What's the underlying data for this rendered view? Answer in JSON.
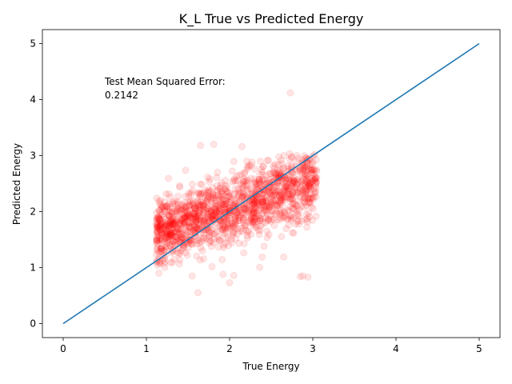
{
  "chart_data": {
    "type": "scatter",
    "title": "K_L True vs Predicted Energy",
    "xlabel": "True Energy",
    "ylabel": "Predicted Energy",
    "xlim": [
      -0.25,
      5.25
    ],
    "ylim": [
      -0.25,
      5.25
    ],
    "xticks": [
      "0",
      "1",
      "2",
      "3",
      "4",
      "5"
    ],
    "yticks": [
      "0",
      "1",
      "2",
      "3",
      "4",
      "5"
    ],
    "grid": false,
    "legend": "none",
    "annotation": {
      "line1": "Test Mean Squared Error:",
      "line2": "0.2142",
      "x": 0.5,
      "y": 4.02
    },
    "reference_line": {
      "x": [
        0,
        5
      ],
      "y": [
        0,
        5
      ],
      "color": "#1f77b4"
    },
    "scatter_color": "#ff0000",
    "scatter_alpha": 0.1,
    "scatter_count": 1500,
    "scatter_x_range": [
      1.12,
      3.05
    ],
    "scatter_trend": {
      "y_at_x_min": 1.6,
      "y_at_x_max": 2.55,
      "spread_sd": 0.3
    },
    "outliers": [
      {
        "x": 2.73,
        "y": 4.12
      },
      {
        "x": 1.62,
        "y": 0.55
      },
      {
        "x": 2.0,
        "y": 0.73
      },
      {
        "x": 1.15,
        "y": 0.9
      },
      {
        "x": 1.55,
        "y": 0.85
      },
      {
        "x": 1.92,
        "y": 0.88
      },
      {
        "x": 2.05,
        "y": 0.86
      },
      {
        "x": 2.85,
        "y": 0.84
      },
      {
        "x": 2.94,
        "y": 0.83
      },
      {
        "x": 2.88,
        "y": 0.85
      },
      {
        "x": 1.65,
        "y": 3.18
      },
      {
        "x": 1.81,
        "y": 3.2
      },
      {
        "x": 2.15,
        "y": 3.16
      },
      {
        "x": 2.65,
        "y": 1.19
      },
      {
        "x": 2.39,
        "y": 1.19
      }
    ]
  }
}
